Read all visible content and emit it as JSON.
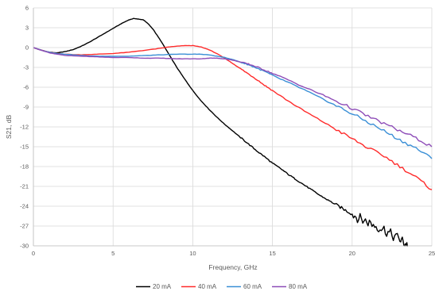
{
  "chart_data": {
    "type": "line",
    "title": "",
    "xlabel": "Frequency, GHz",
    "ylabel": "S21, dB",
    "xlim": [
      0,
      25
    ],
    "ylim": [
      -30,
      6
    ],
    "xticks": [
      0,
      5,
      10,
      15,
      20,
      25
    ],
    "yticks": [
      6,
      3,
      0,
      -3,
      -6,
      -9,
      -12,
      -15,
      -18,
      -21,
      -24,
      -27,
      -30
    ],
    "grid": true,
    "legend_position": "bottom",
    "colors": {
      "20 mA": "#000000",
      "40 mA": "#ff2b2b",
      "60 mA": "#3a8fd6",
      "80 mA": "#8e4db8"
    },
    "series": [
      {
        "name": "20 mA",
        "color": "#000000",
        "x": [
          0,
          0.5,
          1,
          1.5,
          2,
          2.5,
          3,
          3.5,
          4,
          4.5,
          5,
          5.5,
          6,
          6.3,
          6.6,
          6.9,
          7.2,
          7.5,
          8,
          8.5,
          9,
          9.5,
          10,
          10.5,
          11,
          11.5,
          12,
          12.5,
          13,
          13.5,
          14,
          14.5,
          15,
          15.5,
          16,
          16.5,
          17,
          17.5,
          18,
          18.5,
          19,
          19.5,
          20,
          20.5,
          21,
          21.5,
          22,
          22.5,
          23,
          23.3,
          23.5
        ],
        "y": [
          0,
          -0.4,
          -0.7,
          -0.8,
          -0.6,
          -0.3,
          0.2,
          0.8,
          1.5,
          2.2,
          2.9,
          3.6,
          4.2,
          4.4,
          4.3,
          4.2,
          3.6,
          2.8,
          1.0,
          -1.0,
          -3.0,
          -4.8,
          -6.5,
          -8.0,
          -9.3,
          -10.5,
          -11.6,
          -12.6,
          -13.6,
          -14.6,
          -15.6,
          -16.5,
          -17.5,
          -18.3,
          -19.2,
          -20.0,
          -20.8,
          -21.6,
          -22.4,
          -23.1,
          -23.8,
          -24.5,
          -25.2,
          -25.9,
          -26.4,
          -27.0,
          -27.5,
          -28.4,
          -29.0,
          -29.6,
          -30.0
        ]
      },
      {
        "name": "40 mA",
        "color": "#ff2b2b",
        "x": [
          0,
          0.5,
          1,
          1.5,
          2,
          3,
          4,
          5,
          6,
          7,
          8,
          8.5,
          9,
          9.5,
          10,
          10.5,
          11,
          11.5,
          12,
          12.5,
          13,
          13.5,
          14,
          14.5,
          15,
          16,
          17,
          18,
          19,
          20,
          21,
          22,
          23,
          24,
          25
        ],
        "y": [
          0,
          -0.4,
          -0.7,
          -0.9,
          -1.0,
          -1.1,
          -1.0,
          -0.9,
          -0.7,
          -0.4,
          -0.1,
          0.1,
          0.2,
          0.3,
          0.3,
          0.1,
          -0.3,
          -0.9,
          -1.6,
          -2.4,
          -3.2,
          -4.0,
          -4.8,
          -5.7,
          -6.5,
          -8.1,
          -9.6,
          -11.0,
          -12.4,
          -13.8,
          -15.2,
          -16.4,
          -18.0,
          -19.6,
          -21.5
        ]
      },
      {
        "name": "60 mA",
        "color": "#3a8fd6",
        "x": [
          0,
          0.5,
          1,
          1.5,
          2,
          3,
          4,
          5,
          6,
          7,
          8,
          9,
          10,
          10.5,
          11,
          11.5,
          12,
          12.5,
          13,
          13.5,
          14,
          14.5,
          15,
          16,
          17,
          18,
          19,
          20,
          21,
          22,
          23,
          24,
          25
        ],
        "y": [
          0,
          -0.4,
          -0.7,
          -0.9,
          -1.0,
          -1.2,
          -1.3,
          -1.3,
          -1.3,
          -1.2,
          -1.1,
          -1.0,
          -1.0,
          -1.0,
          -1.1,
          -1.3,
          -1.5,
          -1.8,
          -2.2,
          -2.6,
          -3.1,
          -3.6,
          -4.2,
          -5.3,
          -6.4,
          -7.6,
          -8.8,
          -10.0,
          -11.3,
          -12.6,
          -14.0,
          -15.2,
          -16.8
        ]
      },
      {
        "name": "80 mA",
        "color": "#8e4db8",
        "x": [
          0,
          0.5,
          1,
          1.5,
          2,
          3,
          4,
          5,
          6,
          7,
          8,
          9,
          10,
          10.5,
          11,
          11.5,
          12,
          12.5,
          13,
          13.5,
          14,
          14.5,
          15,
          16,
          17,
          18,
          19,
          20,
          21,
          22,
          23,
          24,
          25
        ],
        "y": [
          0,
          -0.4,
          -0.8,
          -1.0,
          -1.2,
          -1.3,
          -1.4,
          -1.5,
          -1.5,
          -1.6,
          -1.6,
          -1.7,
          -1.7,
          -1.7,
          -1.6,
          -1.6,
          -1.7,
          -1.9,
          -2.2,
          -2.5,
          -2.9,
          -3.4,
          -3.9,
          -4.9,
          -6.0,
          -7.0,
          -8.1,
          -9.2,
          -10.4,
          -11.5,
          -12.6,
          -13.7,
          -15.0
        ]
      }
    ]
  }
}
